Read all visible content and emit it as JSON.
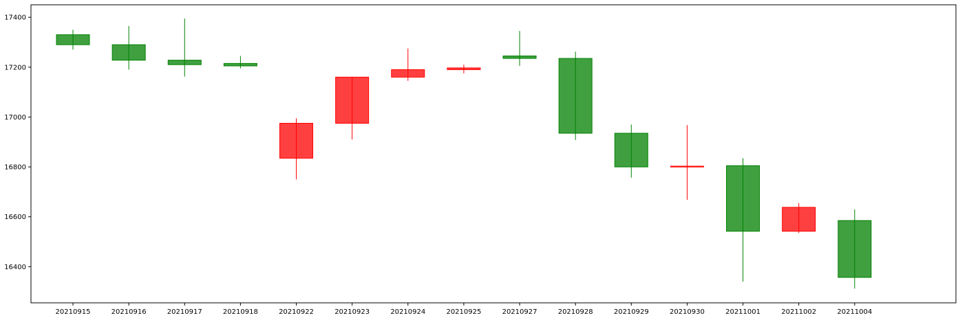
{
  "chart_data": {
    "type": "candlestick",
    "title": "",
    "xlabel": "",
    "ylabel": "",
    "ylim": [
      16255,
      17450
    ],
    "yticks": [
      16400,
      16600,
      16800,
      17000,
      17200,
      17400
    ],
    "colors": {
      "up": "#ff0000",
      "down": "#008000"
    },
    "grid": false,
    "categories": [
      "20210915",
      "20210916",
      "20210917",
      "20210918",
      "20210922",
      "20210923",
      "20210924",
      "20210925",
      "20210927",
      "20210928",
      "20210929",
      "20210930",
      "20211001",
      "20211002",
      "20211004"
    ],
    "ohlc": [
      {
        "open": 17330,
        "high": 17350,
        "low": 17270,
        "close": 17290
      },
      {
        "open": 17290,
        "high": 17365,
        "low": 17190,
        "close": 17228
      },
      {
        "open": 17228,
        "high": 17395,
        "low": 17162,
        "close": 17210
      },
      {
        "open": 17215,
        "high": 17245,
        "low": 17195,
        "close": 17205
      },
      {
        "open": 16835,
        "high": 16995,
        "low": 16750,
        "close": 16975
      },
      {
        "open": 16975,
        "high": 17160,
        "low": 16910,
        "close": 17160
      },
      {
        "open": 17160,
        "high": 17275,
        "low": 17145,
        "close": 17190
      },
      {
        "open": 17190,
        "high": 17210,
        "low": 17175,
        "close": 17197
      },
      {
        "open": 17245,
        "high": 17345,
        "low": 17205,
        "close": 17235
      },
      {
        "open": 17235,
        "high": 17262,
        "low": 16908,
        "close": 16935
      },
      {
        "open": 16935,
        "high": 16970,
        "low": 16757,
        "close": 16800
      },
      {
        "open": 16800,
        "high": 16968,
        "low": 16668,
        "close": 16803
      },
      {
        "open": 16805,
        "high": 16835,
        "low": 16340,
        "close": 16542
      },
      {
        "open": 16542,
        "high": 16655,
        "low": 16535,
        "close": 16638
      },
      {
        "open": 16585,
        "high": 16630,
        "low": 16312,
        "close": 16357
      }
    ]
  }
}
